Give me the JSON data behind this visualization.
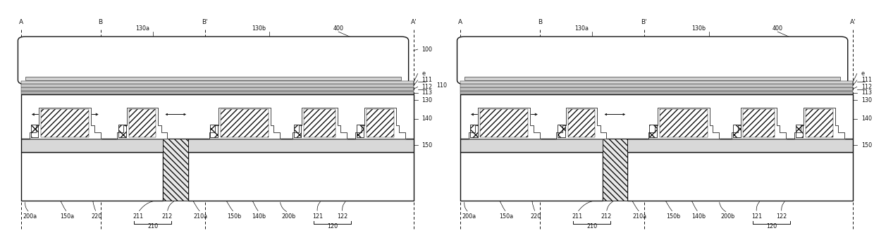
{
  "bg": "#ffffff",
  "lc": "#111111",
  "gray_light": "#e0e0e0",
  "gray_mid": "#cccccc",
  "fig_w": 12.4,
  "fig_h": 3.48,
  "dpi": 100,
  "fs": 5.8,
  "fsl": 6.5,
  "lw": 1.0,
  "lw_t": 0.55,
  "right_labels": [
    "100",
    "e",
    "111",
    "112",
    "110",
    "113",
    "130",
    "140",
    "150"
  ],
  "bot_labels_left": [
    "200a",
    "150a",
    "220",
    "211",
    "212",
    "210a",
    "150b",
    "140b",
    "200b",
    "121",
    "122"
  ],
  "brace_210": "210",
  "brace_120": "120",
  "sec_letters": [
    "A",
    "B",
    "B'",
    "A'"
  ],
  "dim_labels": [
    "130a",
    "130b",
    "400"
  ]
}
